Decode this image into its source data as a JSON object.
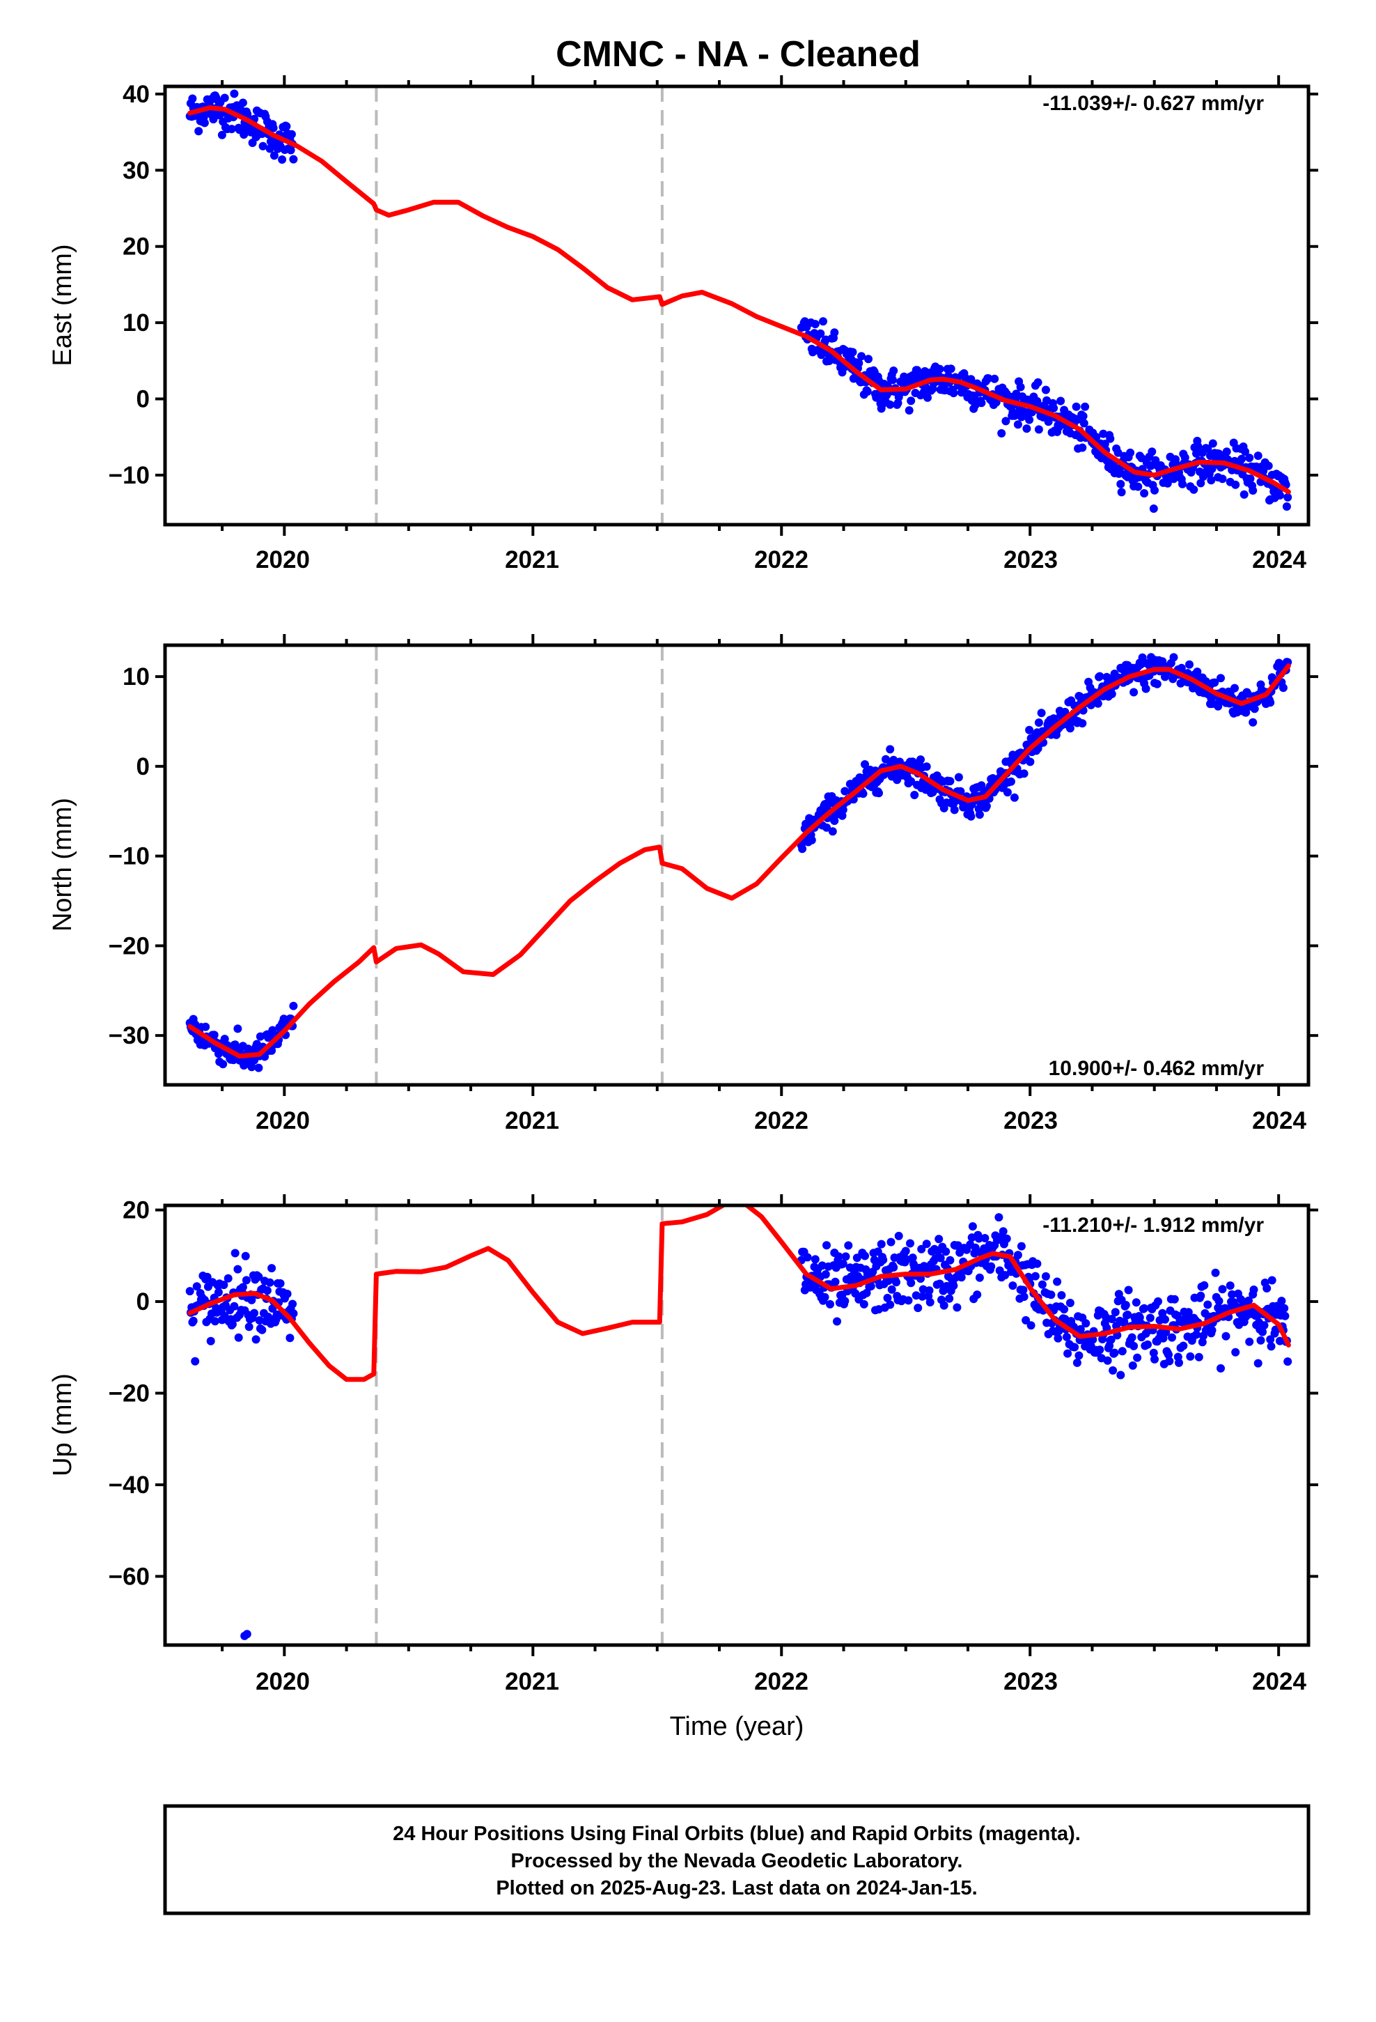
{
  "title": "CMNC  - NA - Cleaned",
  "xlabel": "Time (year)",
  "x_ticks": [
    "2020",
    "2021",
    "2022",
    "2023",
    "2024"
  ],
  "footer": [
    "24 Hour Positions Using Final Orbits (blue) and Rapid Orbits (magenta).",
    "Processed by the Nevada Geodetic Laboratory.",
    "Plotted on 2025-Aug-23. Last data on 2024-Jan-15."
  ],
  "colors": {
    "data": "#0000ff",
    "model": "#ff0000",
    "steps": "#bbbbbb"
  },
  "chart_data": [
    {
      "type": "scatter",
      "name": "east",
      "ylabel": "East (mm)",
      "rate": "-11.039+/- 0.627 mm/yr",
      "rate_position": "top-right",
      "xlim": [
        2019.52,
        2024.12
      ],
      "ylim": [
        -16.5,
        41
      ],
      "y_ticks": [
        40,
        30,
        20,
        10,
        0,
        -10
      ],
      "y_tick_labels": [
        "40",
        "30",
        "20",
        "10",
        "0",
        "−10"
      ],
      "steps": [
        2020.37,
        2021.52
      ],
      "series": [
        {
          "name": "Final Orbits",
          "color": "#0000ff",
          "ranges": [
            [
              2019.62,
              2020.04
            ],
            [
              2022.08,
              2024.04
            ]
          ],
          "scatter_sd": 1.3,
          "dense_step": 0.0035
        },
        {
          "name": "Model",
          "color": "#ff0000",
          "x": [
            2019.62,
            2019.7,
            2019.76,
            2019.85,
            2019.95,
            2020.05,
            2020.15,
            2020.25,
            2020.36,
            2020.37,
            2020.42,
            2020.5,
            2020.6,
            2020.7,
            2020.8,
            2020.9,
            2021.0,
            2021.1,
            2021.2,
            2021.3,
            2021.4,
            2021.51,
            2021.52,
            2021.6,
            2021.68,
            2021.8,
            2021.9,
            2022.0,
            2022.1,
            2022.2,
            2022.3,
            2022.4,
            2022.5,
            2022.6,
            2022.65,
            2022.72,
            2022.8,
            2022.9,
            2023.0,
            2023.1,
            2023.2,
            2023.3,
            2023.42,
            2023.5,
            2023.58,
            2023.68,
            2023.78,
            2023.88,
            2023.98,
            2024.04
          ],
          "y": [
            37.5,
            38.2,
            38.0,
            36.6,
            34.7,
            33.2,
            31.2,
            28.5,
            25.6,
            24.8,
            24.1,
            24.8,
            25.8,
            25.8,
            24.0,
            22.5,
            21.3,
            19.6,
            17.2,
            14.6,
            13.0,
            13.4,
            12.4,
            13.5,
            14.0,
            12.5,
            10.8,
            9.5,
            8.2,
            6.3,
            3.6,
            1.2,
            1.3,
            2.5,
            2.6,
            2.2,
            1.2,
            -0.2,
            -1.0,
            -2.2,
            -4.0,
            -7.0,
            -9.6,
            -10.0,
            -9.2,
            -8.3,
            -8.4,
            -9.4,
            -11.0,
            -12.2
          ]
        }
      ]
    },
    {
      "type": "scatter",
      "name": "north",
      "ylabel": "North (mm)",
      "rate": "10.900+/- 0.462 mm/yr",
      "rate_position": "bottom-right",
      "xlim": [
        2019.52,
        2024.12
      ],
      "ylim": [
        -35.5,
        13.5
      ],
      "y_ticks": [
        10,
        0,
        -10,
        -20,
        -30
      ],
      "y_tick_labels": [
        "10",
        "0",
        "−10",
        "−20",
        "−30"
      ],
      "steps": [
        2020.37,
        2021.52
      ],
      "series": [
        {
          "name": "Final Orbits",
          "color": "#0000ff",
          "ranges": [
            [
              2019.62,
              2020.04
            ],
            [
              2022.08,
              2024.04
            ]
          ],
          "scatter_sd": 0.9,
          "dense_step": 0.0035
        },
        {
          "name": "Model",
          "color": "#ff0000",
          "x": [
            2019.62,
            2019.72,
            2019.82,
            2019.9,
            2020.0,
            2020.1,
            2020.2,
            2020.3,
            2020.36,
            2020.37,
            2020.45,
            2020.55,
            2020.62,
            2020.72,
            2020.84,
            2020.95,
            2021.05,
            2021.15,
            2021.25,
            2021.35,
            2021.45,
            2021.51,
            2021.52,
            2021.6,
            2021.7,
            2021.8,
            2021.9,
            2022.0,
            2022.1,
            2022.2,
            2022.3,
            2022.4,
            2022.48,
            2022.55,
            2022.65,
            2022.75,
            2022.82,
            2022.9,
            2023.0,
            2023.1,
            2023.2,
            2023.3,
            2023.4,
            2023.5,
            2023.56,
            2023.65,
            2023.75,
            2023.85,
            2023.95,
            2024.04
          ],
          "y": [
            -29.0,
            -30.8,
            -32.3,
            -32.1,
            -29.5,
            -26.5,
            -24.0,
            -21.8,
            -20.2,
            -21.8,
            -20.3,
            -19.9,
            -20.9,
            -22.9,
            -23.2,
            -21.0,
            -18.0,
            -15.0,
            -12.8,
            -10.8,
            -9.3,
            -9.0,
            -10.8,
            -11.4,
            -13.6,
            -14.7,
            -13.1,
            -10.2,
            -7.4,
            -5.0,
            -2.8,
            -0.5,
            0.0,
            -0.8,
            -2.6,
            -3.8,
            -3.4,
            -1.0,
            2.0,
            4.4,
            6.6,
            8.6,
            10.0,
            10.8,
            10.8,
            9.7,
            8.1,
            7.0,
            8.0,
            11.2
          ]
        }
      ]
    },
    {
      "type": "scatter",
      "name": "up",
      "ylabel": "Up (mm)",
      "rate": "-11.210+/- 1.912 mm/yr",
      "rate_position": "top-right",
      "xlim": [
        2019.52,
        2024.12
      ],
      "ylim": [
        -75,
        21
      ],
      "y_ticks": [
        20,
        0,
        -20,
        -40,
        -60
      ],
      "y_tick_labels": [
        "20",
        "0",
        "−20",
        "−40",
        "−60"
      ],
      "steps": [
        2020.37,
        2021.52
      ],
      "outliers": [
        {
          "x": 2019.84,
          "y": -73.0
        },
        {
          "x": 2019.85,
          "y": -72.6
        }
      ],
      "series": [
        {
          "name": "Final Orbits",
          "color": "#0000ff",
          "ranges": [
            [
              2019.62,
              2020.04
            ],
            [
              2022.08,
              2024.04
            ]
          ],
          "scatter_sd": 3.8,
          "dense_step": 0.0035
        },
        {
          "name": "Model",
          "color": "#ff0000",
          "x": [
            2019.62,
            2019.7,
            2019.8,
            2019.88,
            2019.95,
            2020.02,
            2020.1,
            2020.18,
            2020.25,
            2020.32,
            2020.36,
            2020.37,
            2020.45,
            2020.55,
            2020.65,
            2020.75,
            2020.82,
            2020.9,
            2021.0,
            2021.1,
            2021.2,
            2021.3,
            2021.4,
            2021.51,
            2021.52,
            2021.6,
            2021.7,
            2021.78,
            2021.85,
            2021.92,
            2022.0,
            2022.1,
            2022.2,
            2022.3,
            2022.4,
            2022.5,
            2022.6,
            2022.7,
            2022.8,
            2022.85,
            2022.92,
            2023.0,
            2023.1,
            2023.2,
            2023.3,
            2023.4,
            2023.5,
            2023.6,
            2023.7,
            2023.8,
            2023.9,
            2024.0,
            2024.04
          ],
          "y": [
            -2.5,
            -0.5,
            1.5,
            1.8,
            0.3,
            -3.5,
            -9.0,
            -14.0,
            -17.0,
            -17.0,
            -15.8,
            6.0,
            6.6,
            6.5,
            7.5,
            10.0,
            11.6,
            9.0,
            2.0,
            -4.5,
            -7.0,
            -5.8,
            -4.5,
            -4.5,
            17.0,
            17.4,
            19.0,
            21.5,
            21.5,
            18.5,
            13.0,
            6.0,
            2.8,
            3.5,
            5.5,
            6.0,
            6.0,
            7.0,
            9.5,
            10.5,
            9.8,
            3.0,
            -4.0,
            -7.6,
            -7.0,
            -5.6,
            -5.4,
            -6.0,
            -4.8,
            -2.4,
            -0.8,
            -5.0,
            -9.5
          ]
        }
      ]
    }
  ]
}
